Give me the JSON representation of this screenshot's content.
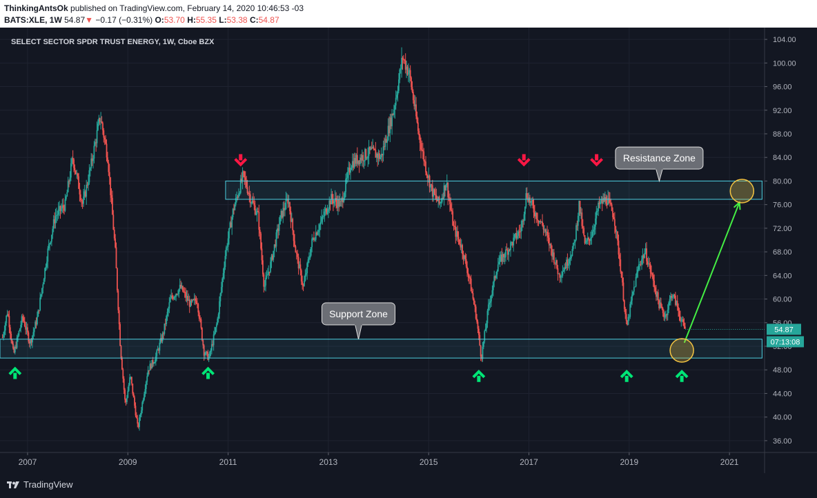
{
  "header": {
    "author": "ThinkingAntsOk",
    "published_text": "published on TradingView.com, February 14, 2020 10:46:53 -03",
    "symbol": "BATS:XLE, 1W",
    "last": "54.87",
    "change": "−0.17 (−0.31%)",
    "o_label": "O:",
    "o_value": "53.70",
    "h_label": "H:",
    "h_value": "55.35",
    "l_label": "L:",
    "l_value": "53.38",
    "c_label": "C:",
    "c_value": "54.87"
  },
  "footer": {
    "brand": "TradingView"
  },
  "colors": {
    "up": "#26a69a",
    "down": "#ef5350",
    "zone": "#4dd0e1",
    "arrow_up": "#00e676",
    "arrow_down": "#ff1744",
    "projection": "#44ee44",
    "circle": "#f5c542"
  },
  "chart_data": {
    "type": "candlestick",
    "title": "SELECT SECTOR SPDR TRUST ENERGY, 1W, Cboe BZX",
    "ylim": [
      34,
      106
    ],
    "xlim": [
      2006.45,
      2021.7
    ],
    "y_ticks": [
      "104.00",
      "100.00",
      "96.00",
      "92.00",
      "88.00",
      "84.00",
      "80.00",
      "76.00",
      "72.00",
      "68.00",
      "64.00",
      "60.00",
      "56.00",
      "52.00",
      "48.00",
      "44.00",
      "40.00",
      "36.00"
    ],
    "x_ticks": [
      "2007",
      "2009",
      "2011",
      "2013",
      "2015",
      "2017",
      "2019",
      "2021"
    ],
    "price_path": [
      [
        2006.5,
        53.5
      ],
      [
        2006.6,
        58
      ],
      [
        2006.72,
        50.5
      ],
      [
        2006.9,
        57
      ],
      [
        2007.05,
        52.5
      ],
      [
        2007.2,
        57
      ],
      [
        2007.4,
        68
      ],
      [
        2007.55,
        74
      ],
      [
        2007.75,
        76
      ],
      [
        2007.9,
        84
      ],
      [
        2008.1,
        76
      ],
      [
        2008.25,
        82
      ],
      [
        2008.45,
        91
      ],
      [
        2008.6,
        84
      ],
      [
        2008.75,
        68
      ],
      [
        2008.85,
        52
      ],
      [
        2008.95,
        42
      ],
      [
        2009.05,
        47
      ],
      [
        2009.2,
        38
      ],
      [
        2009.4,
        48
      ],
      [
        2009.55,
        50
      ],
      [
        2009.7,
        54
      ],
      [
        2009.85,
        60
      ],
      [
        2010.05,
        62
      ],
      [
        2010.25,
        59
      ],
      [
        2010.38,
        60
      ],
      [
        2010.52,
        51
      ],
      [
        2010.62,
        50
      ],
      [
        2010.78,
        56
      ],
      [
        2010.95,
        68
      ],
      [
        2011.1,
        75
      ],
      [
        2011.3,
        81
      ],
      [
        2011.45,
        77
      ],
      [
        2011.6,
        74
      ],
      [
        2011.72,
        62
      ],
      [
        2011.85,
        66
      ],
      [
        2012.05,
        74
      ],
      [
        2012.2,
        77
      ],
      [
        2012.35,
        68
      ],
      [
        2012.5,
        62
      ],
      [
        2012.68,
        70
      ],
      [
        2012.85,
        73
      ],
      [
        2013.05,
        77
      ],
      [
        2013.25,
        76
      ],
      [
        2013.45,
        83
      ],
      [
        2013.65,
        84
      ],
      [
        2013.85,
        85
      ],
      [
        2014.05,
        84
      ],
      [
        2014.3,
        92
      ],
      [
        2014.48,
        101
      ],
      [
        2014.62,
        98
      ],
      [
        2014.8,
        88
      ],
      [
        2014.95,
        82
      ],
      [
        2015.08,
        78
      ],
      [
        2015.22,
        76
      ],
      [
        2015.35,
        80
      ],
      [
        2015.5,
        72
      ],
      [
        2015.65,
        69
      ],
      [
        2015.8,
        64
      ],
      [
        2015.95,
        57
      ],
      [
        2016.05,
        50
      ],
      [
        2016.2,
        59
      ],
      [
        2016.38,
        66
      ],
      [
        2016.55,
        68
      ],
      [
        2016.7,
        70
      ],
      [
        2016.85,
        72
      ],
      [
        2016.95,
        78
      ],
      [
        2017.1,
        75
      ],
      [
        2017.3,
        72
      ],
      [
        2017.5,
        67
      ],
      [
        2017.6,
        64
      ],
      [
        2017.75,
        66
      ],
      [
        2017.9,
        69
      ],
      [
        2018.0,
        76
      ],
      [
        2018.12,
        69
      ],
      [
        2018.25,
        71
      ],
      [
        2018.4,
        76
      ],
      [
        2018.55,
        77
      ],
      [
        2018.7,
        74
      ],
      [
        2018.82,
        66
      ],
      [
        2018.95,
        55
      ],
      [
        2019.05,
        60
      ],
      [
        2019.2,
        66
      ],
      [
        2019.32,
        68
      ],
      [
        2019.45,
        64
      ],
      [
        2019.6,
        59
      ],
      [
        2019.72,
        57
      ],
      [
        2019.85,
        61
      ],
      [
        2019.95,
        59
      ],
      [
        2020.05,
        56
      ],
      [
        2020.12,
        54.9
      ]
    ],
    "zones": [
      {
        "name": "Resistance Zone",
        "from_x": 2010.95,
        "to_x": 2021.65,
        "low": 76.9,
        "high": 80.0
      },
      {
        "name": "Support Zone",
        "from_x": 2006.45,
        "to_x": 2021.65,
        "low": 50.0,
        "high": 53.2
      }
    ],
    "callouts": [
      {
        "label": "Resistance Zone",
        "x": 2019.6,
        "y": 83.9,
        "target_y": 80.0
      },
      {
        "label": "Support Zone",
        "x": 2013.6,
        "y": 57.5,
        "target_y": 53.2
      }
    ],
    "arrows_down": [
      {
        "x": 2011.25,
        "y": 83.5
      },
      {
        "x": 2016.9,
        "y": 83.5
      },
      {
        "x": 2018.35,
        "y": 83.5
      }
    ],
    "arrows_up": [
      {
        "x": 2006.75,
        "y": 47.5
      },
      {
        "x": 2010.6,
        "y": 47.5
      },
      {
        "x": 2016.0,
        "y": 47.0
      },
      {
        "x": 2018.95,
        "y": 47.0
      },
      {
        "x": 2020.05,
        "y": 47.0
      }
    ],
    "projection": {
      "from": [
        2020.1,
        52.6
      ],
      "to": [
        2021.2,
        76.4
      ]
    },
    "circles": [
      {
        "x": 2020.05,
        "y": 51.3
      },
      {
        "x": 2021.25,
        "y": 78.3
      }
    ],
    "last_price_label": "54.87",
    "countdown_label": "07:13:08",
    "last_price": 54.87
  }
}
